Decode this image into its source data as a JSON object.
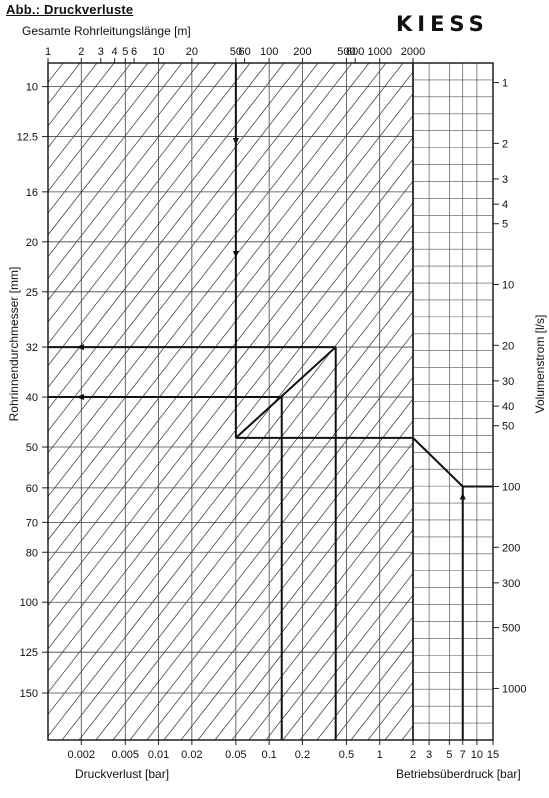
{
  "header": {
    "title": "Abb.: Druckverluste",
    "logo_text": "KIESS"
  },
  "chart_data": {
    "type": "line",
    "title": "Abb.: Druckverluste",
    "top_axis": {
      "label": "Gesamte Rohrleitungslänge  [m]",
      "scale": "log",
      "ticks": [
        1,
        2,
        3,
        4,
        5,
        6,
        10,
        20,
        50,
        60,
        100,
        200,
        500,
        600,
        1000,
        2000
      ],
      "tick_labels": [
        "1",
        "2",
        "3",
        "4",
        "5",
        "6",
        "10",
        "20",
        "50",
        "60",
        "100",
        "200",
        "500",
        "600",
        "1000",
        "2000"
      ]
    },
    "x_axis": {
      "label": "Druckverlust  [bar]",
      "scale": "log",
      "range": [
        0.001,
        2
      ],
      "ticks": [
        0.002,
        0.005,
        0.01,
        0.02,
        0.05,
        0.1,
        0.2,
        0.5,
        1
      ],
      "tick_labels": [
        "0.002",
        "0.005",
        "0.01",
        "0.02",
        "0.05",
        "0.1",
        "0.2",
        "0.5",
        "1"
      ]
    },
    "y_axis": {
      "label": "Rohrinnendurchmesser  [mm]",
      "scale": "log",
      "inverted": true,
      "range": [
        9,
        185
      ],
      "ticks": [
        10,
        12.5,
        16,
        20,
        25,
        32,
        40,
        50,
        60,
        70,
        80,
        100,
        125,
        150
      ],
      "tick_labels": [
        "10",
        "12.5",
        "16",
        "20",
        "25",
        "32",
        "40",
        "50",
        "60",
        "70",
        "80",
        "100",
        "125",
        "150"
      ]
    },
    "right_x_axis": {
      "label": "Betriebsüberdruck  [bar]",
      "range": [
        2,
        15
      ],
      "ticks": [
        2,
        3,
        5,
        7,
        10,
        15
      ],
      "tick_labels": [
        "2",
        "3",
        "5",
        "7",
        "10",
        "15"
      ]
    },
    "right_y_axis": {
      "label": "Volumenstrom  [l/s]",
      "scale": "log",
      "ticks": [
        1,
        2,
        3,
        4,
        5,
        10,
        20,
        30,
        40,
        50,
        100,
        200,
        300,
        500,
        1000
      ],
      "tick_labels": [
        "1",
        "2",
        "3",
        "4",
        "5",
        "10",
        "20",
        "30",
        "40",
        "50",
        "100",
        "200",
        "300",
        "500",
        "1000"
      ]
    },
    "grid": true,
    "example_paths": [
      {
        "description": "Rohrlänge 50 m",
        "pipe_length_m": 50
      },
      {
        "pressure_loss_bar": 0.05,
        "diameter_mm": 48
      },
      {
        "pressure_loss_bar": 0.13,
        "diameter_mm": 40
      },
      {
        "pressure_loss_bar": 0.4,
        "diameter_mm": 32
      },
      {
        "operating_pressure_bar": 7,
        "flow_l_s": 100
      }
    ]
  }
}
